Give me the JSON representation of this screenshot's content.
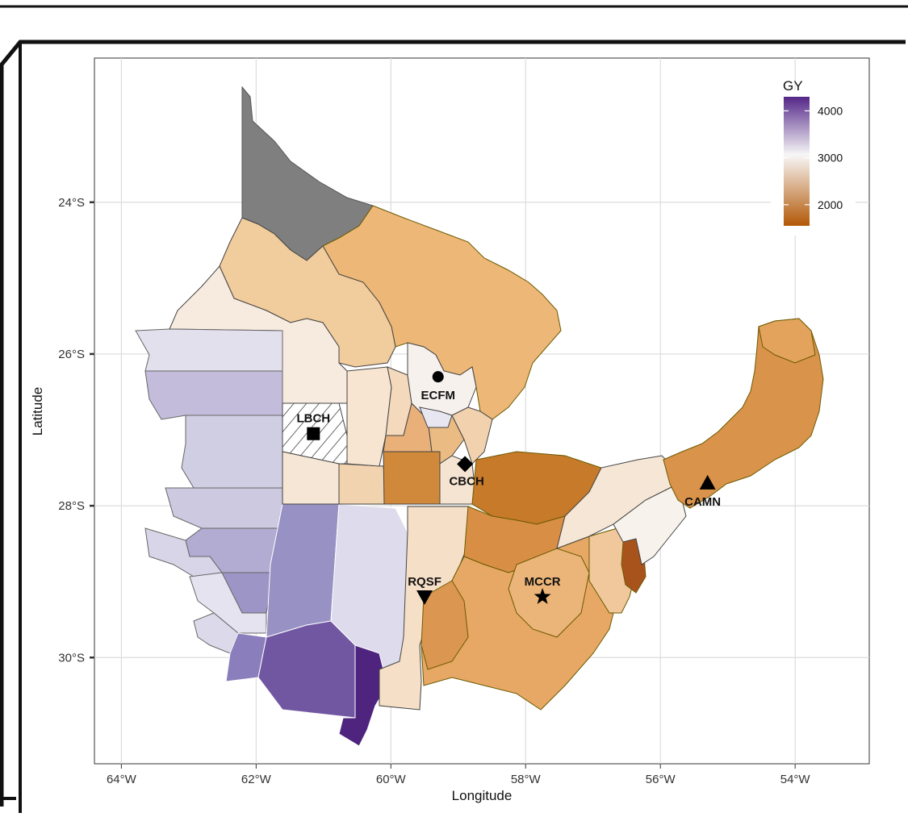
{
  "map": {
    "xlabel": "Longitude",
    "ylabel": "Latitude",
    "x_ticks": [
      "64°W",
      "62°W",
      "60°W",
      "58°W",
      "56°W",
      "54°W"
    ],
    "y_ticks": [
      "24°S",
      "26°S",
      "28°S",
      "30°S"
    ],
    "lon_range": [
      -64.4,
      -52.9
    ],
    "lat_range": [
      -22.1,
      -31.4
    ],
    "grid": true,
    "colors": {
      "missing": "#7f7f7f",
      "scale_low": "#b35806",
      "scale_mid": "#f7f7f7",
      "scale_high": "#542788",
      "oriental_border": "#6b5a00",
      "west_border": "#444444"
    }
  },
  "legend": {
    "title": "GY",
    "labels": [
      "4000",
      "3000",
      "2000"
    ],
    "label_values": [
      4000,
      3000,
      2000
    ],
    "min": 1550,
    "max": 4300,
    "placement": "top-right"
  },
  "sites": [
    {
      "code": "ECFM",
      "lon": -59.3,
      "lat": -26.3,
      "symbol": "circle"
    },
    {
      "code": "LBCH",
      "lon": -61.15,
      "lat": -27.05,
      "symbol": "square"
    },
    {
      "code": "CBCH",
      "lon": -58.9,
      "lat": -27.45,
      "symbol": "diamond"
    },
    {
      "code": "CAMN",
      "lon": -55.3,
      "lat": -27.7,
      "symbol": "triangle-up"
    },
    {
      "code": "RQSF",
      "lon": -59.5,
      "lat": -29.2,
      "symbol": "triangle-down"
    },
    {
      "code": "MCCR",
      "lon": -57.75,
      "lat": -29.2,
      "symbol": "star"
    }
  ]
}
